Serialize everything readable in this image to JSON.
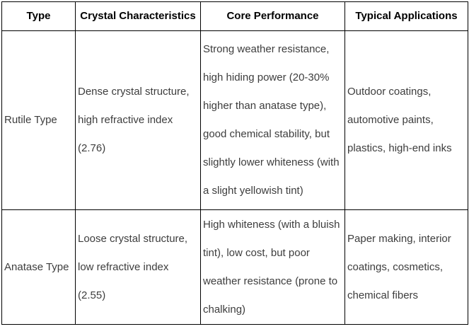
{
  "table": {
    "headers": [
      "Type",
      "Crystal Characteristics",
      "Core Performance",
      "Typical Applications"
    ],
    "rows": [
      {
        "type": "Rutile Type",
        "crystal_characteristics": "Dense crystal structure,\nhigh refractive index\n(2.76)",
        "core_performance": "Strong weather resistance,\nhigh hiding power (20-30%\nhigher than anatase type),\ngood chemical stability, but\nslightly lower whiteness (with\na slight yellowish tint)",
        "typical_applications": "Outdoor coatings,\nautomotive paints,\nplastics, high-end inks"
      },
      {
        "type": "Anatase Type",
        "crystal_characteristics": "Loose crystal structure,\nlow refractive index\n(2.55)",
        "core_performance": "High whiteness (with a bluish\ntint), low cost, but poor\nweather resistance (prone to\nchalking)",
        "typical_applications": "Paper making, interior\ncoatings, cosmetics,\nchemical fibers"
      }
    ]
  },
  "colors": {
    "border": "#000000",
    "header_text": "#000000",
    "body_text": "#3d3d3d",
    "background": "#ffffff"
  }
}
